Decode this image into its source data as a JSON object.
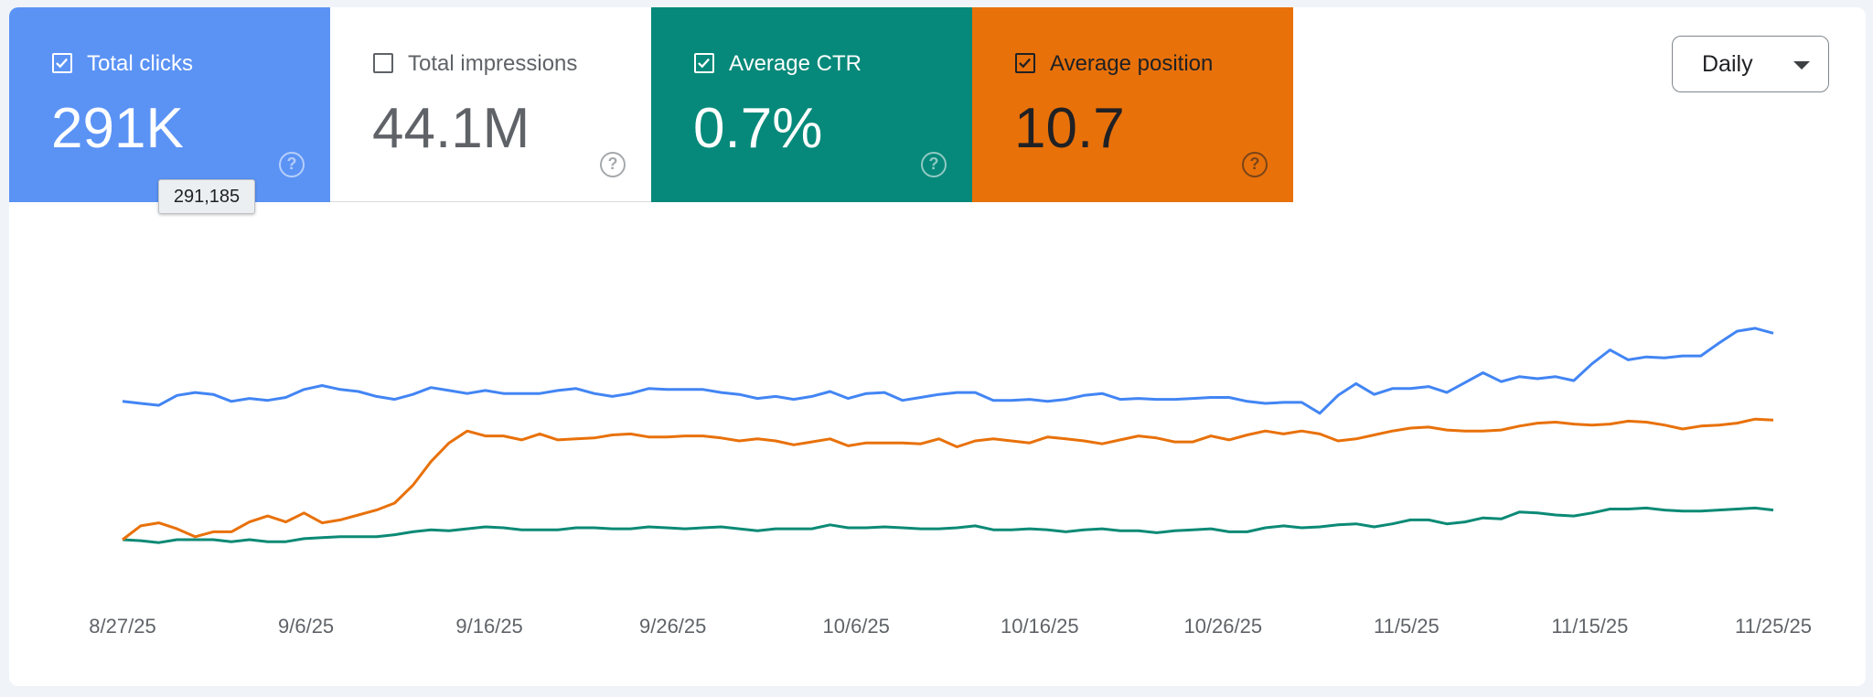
{
  "cards": [
    {
      "key": "clicks",
      "label": "Total clicks",
      "value": "291K",
      "checked": true
    },
    {
      "key": "impressions",
      "label": "Total impressions",
      "value": "44.1M",
      "checked": false
    },
    {
      "key": "ctr",
      "label": "Average CTR",
      "value": "0.7%",
      "checked": true
    },
    {
      "key": "position",
      "label": "Average position",
      "value": "10.7",
      "checked": true
    }
  ],
  "tooltip": {
    "value": "291,185"
  },
  "period_selector": {
    "label": "Daily"
  },
  "icons": {
    "checkbox": "checkbox-icon",
    "help": "help-circle-icon",
    "dropdown": "dropdown-caret-icon"
  },
  "colors": {
    "clicks": "#4285f4",
    "ctr": "#0b8a76",
    "position": "#e8710a"
  },
  "chart_data": {
    "type": "line",
    "x_labels": [
      "8/27/25",
      "9/6/25",
      "9/16/25",
      "9/26/25",
      "10/6/25",
      "10/16/25",
      "10/26/25",
      "11/5/25",
      "11/15/25",
      "11/25/25"
    ],
    "x_range": [
      "8/27/25",
      "11/25/25"
    ],
    "y_axis_visible": false,
    "grid": false,
    "series": [
      {
        "key": "clicks",
        "values": [
          3.8,
          3.76,
          3.72,
          3.92,
          3.98,
          3.94,
          3.8,
          3.86,
          3.82,
          3.88,
          4.04,
          4.12,
          4.04,
          4.0,
          3.9,
          3.84,
          3.94,
          4.08,
          4.02,
          3.96,
          4.02,
          3.96,
          3.96,
          3.96,
          4.02,
          4.06,
          3.96,
          3.9,
          3.96,
          4.06,
          4.04,
          4.04,
          4.04,
          3.98,
          3.94,
          3.86,
          3.9,
          3.84,
          3.9,
          4.0,
          3.86,
          3.96,
          3.98,
          3.82,
          3.88,
          3.94,
          3.98,
          3.98,
          3.82,
          3.82,
          3.84,
          3.8,
          3.84,
          3.92,
          3.96,
          3.84,
          3.86,
          3.84,
          3.84,
          3.86,
          3.88,
          3.88,
          3.8,
          3.76,
          3.78,
          3.78,
          3.56,
          3.92,
          4.16,
          3.94,
          4.06,
          4.06,
          4.1,
          3.98,
          4.18,
          4.38,
          4.2,
          4.3,
          4.26,
          4.3,
          4.22,
          4.56,
          4.84,
          4.64,
          4.7,
          4.68,
          4.72,
          4.72,
          4.98,
          5.22,
          5.28,
          5.18
        ]
      },
      {
        "key": "ctr",
        "values": [
          1.0,
          0.98,
          0.94,
          1.0,
          1.0,
          1.0,
          0.96,
          1.0,
          0.96,
          0.96,
          1.02,
          1.04,
          1.06,
          1.06,
          1.06,
          1.1,
          1.16,
          1.2,
          1.18,
          1.22,
          1.26,
          1.24,
          1.2,
          1.2,
          1.2,
          1.24,
          1.24,
          1.22,
          1.22,
          1.26,
          1.24,
          1.22,
          1.24,
          1.26,
          1.22,
          1.18,
          1.22,
          1.22,
          1.22,
          1.3,
          1.24,
          1.24,
          1.26,
          1.24,
          1.22,
          1.22,
          1.24,
          1.28,
          1.2,
          1.2,
          1.22,
          1.2,
          1.16,
          1.2,
          1.22,
          1.18,
          1.18,
          1.14,
          1.18,
          1.2,
          1.22,
          1.16,
          1.16,
          1.24,
          1.28,
          1.24,
          1.26,
          1.3,
          1.32,
          1.26,
          1.32,
          1.4,
          1.4,
          1.32,
          1.36,
          1.44,
          1.42,
          1.56,
          1.54,
          1.5,
          1.48,
          1.54,
          1.62,
          1.62,
          1.64,
          1.6,
          1.58,
          1.58,
          1.6,
          1.62,
          1.64,
          1.6
        ]
      },
      {
        "key": "position",
        "values": [
          1.0,
          1.28,
          1.34,
          1.22,
          1.06,
          1.16,
          1.16,
          1.36,
          1.48,
          1.36,
          1.54,
          1.34,
          1.4,
          1.5,
          1.6,
          1.74,
          2.1,
          2.58,
          2.96,
          3.2,
          3.1,
          3.1,
          3.02,
          3.14,
          3.02,
          3.04,
          3.06,
          3.12,
          3.14,
          3.08,
          3.08,
          3.1,
          3.1,
          3.06,
          3.0,
          3.04,
          3.0,
          2.92,
          2.98,
          3.04,
          2.9,
          2.96,
          2.96,
          2.96,
          2.94,
          3.04,
          2.88,
          3.0,
          3.04,
          3.0,
          2.96,
          3.08,
          3.04,
          3.0,
          2.94,
          3.02,
          3.1,
          3.06,
          2.98,
          2.98,
          3.1,
          3.02,
          3.12,
          3.2,
          3.14,
          3.2,
          3.14,
          3.0,
          3.04,
          3.12,
          3.2,
          3.26,
          3.28,
          3.22,
          3.2,
          3.2,
          3.22,
          3.3,
          3.36,
          3.38,
          3.34,
          3.32,
          3.34,
          3.4,
          3.38,
          3.32,
          3.24,
          3.3,
          3.32,
          3.36,
          3.44,
          3.42
        ]
      }
    ]
  }
}
